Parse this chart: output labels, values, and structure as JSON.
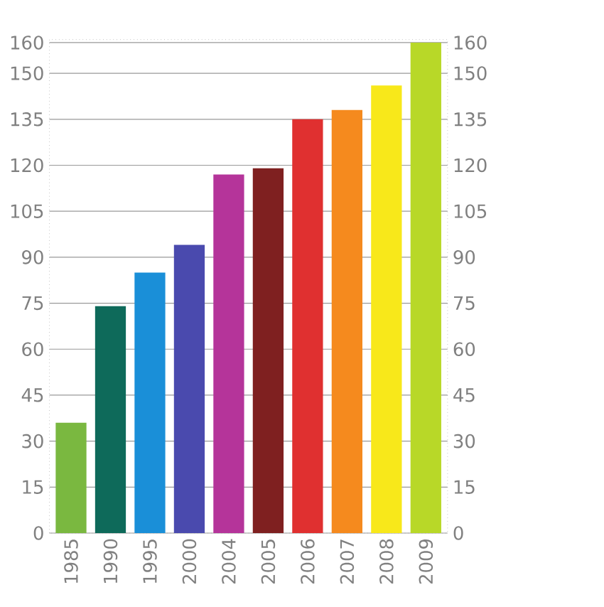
{
  "chart_data": {
    "type": "bar",
    "categories": [
      "1985",
      "1990",
      "1995",
      "2000",
      "2004",
      "2005",
      "2006",
      "2007",
      "2008",
      "2009"
    ],
    "values": [
      36,
      74,
      85,
      94,
      117,
      119,
      135,
      138,
      146,
      160
    ],
    "colors": [
      "#7ab840",
      "#0e6a5a",
      "#1a8fd8",
      "#4a4aae",
      "#b5349a",
      "#7f2020",
      "#e03030",
      "#f58a1e",
      "#f8e81a",
      "#b8d828"
    ],
    "ylim": [
      0,
      161
    ],
    "yticks": [
      0,
      15,
      30,
      45,
      60,
      75,
      90,
      105,
      120,
      135,
      150,
      160
    ],
    "y2lim": [
      0,
      161
    ],
    "y2ticks": [
      0,
      15,
      30,
      45,
      60,
      75,
      90,
      105,
      120,
      135,
      150,
      160
    ],
    "grid": "y"
  }
}
